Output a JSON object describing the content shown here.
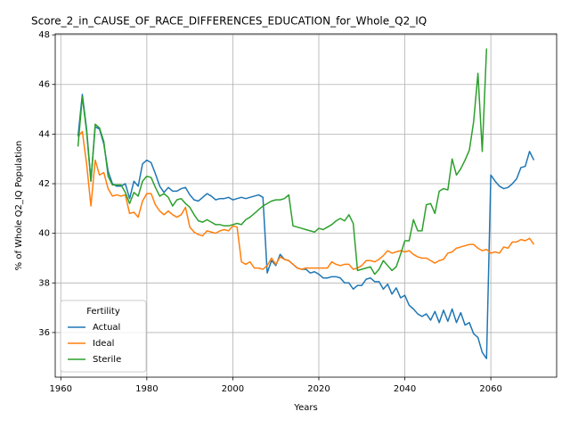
{
  "chart_data": {
    "type": "line",
    "title": "Score_2_in_CAUSE_OF_RACE_DIFFERENCES_EDUCATION_for_Whole_Q2_IQ",
    "xlabel": "Years",
    "ylabel": "% of Whole Q2_IQ Population",
    "legend_title": "Fertility",
    "legend": "lower left",
    "grid": true,
    "xlim": [
      1958.7,
      2075.3
    ],
    "ylim": [
      34.2,
      48.04
    ],
    "xticks": [
      1960,
      1980,
      2000,
      2020,
      2040,
      2060
    ],
    "yticks": [
      36,
      38,
      40,
      42,
      44,
      46,
      48
    ],
    "x": [
      1964,
      1965,
      1966,
      1967,
      1968,
      1969,
      1970,
      1971,
      1972,
      1973,
      1974,
      1975,
      1976,
      1977,
      1978,
      1979,
      1980,
      1981,
      1982,
      1983,
      1984,
      1985,
      1986,
      1987,
      1988,
      1989,
      1990,
      1991,
      1992,
      1993,
      1994,
      1995,
      1996,
      1997,
      1998,
      1999,
      2000,
      2001,
      2002,
      2003,
      2004,
      2005,
      2006,
      2007,
      2008,
      2009,
      2010,
      2011,
      2012,
      2013,
      2014,
      2015,
      2016,
      2017,
      2018,
      2019,
      2020,
      2021,
      2022,
      2023,
      2024,
      2025,
      2026,
      2027,
      2028,
      2029,
      2030,
      2031,
      2032,
      2033,
      2034,
      2035,
      2036,
      2037,
      2038,
      2039,
      2040,
      2041,
      2042,
      2043,
      2044,
      2045,
      2046,
      2047,
      2048,
      2049,
      2050,
      2051,
      2052,
      2053,
      2054,
      2055,
      2056,
      2057,
      2058,
      2059,
      2060,
      2061,
      2062,
      2063,
      2064,
      2065,
      2066,
      2067,
      2068,
      2069,
      2070
    ],
    "series": [
      {
        "name": "Actual",
        "color": "#1f77b4",
        "values": [
          43.9,
          45.6,
          44.2,
          42.1,
          44.3,
          44.2,
          43.6,
          42.5,
          42.0,
          41.9,
          41.9,
          42.0,
          41.4,
          42.1,
          41.9,
          42.8,
          42.95,
          42.85,
          42.4,
          41.9,
          41.65,
          41.85,
          41.7,
          41.7,
          41.8,
          41.85,
          41.55,
          41.35,
          41.3,
          41.45,
          41.6,
          41.5,
          41.35,
          41.4,
          41.4,
          41.45,
          41.35,
          41.4,
          41.45,
          41.4,
          41.45,
          41.5,
          41.55,
          41.45,
          38.4,
          38.9,
          38.7,
          39.15,
          38.95,
          38.9,
          38.75,
          38.6,
          38.55,
          38.55,
          38.4,
          38.45,
          38.35,
          38.2,
          38.2,
          38.25,
          38.25,
          38.2,
          38.0,
          38.0,
          37.75,
          37.9,
          37.9,
          38.15,
          38.2,
          38.05,
          38.05,
          37.75,
          37.95,
          37.55,
          37.8,
          37.4,
          37.5,
          37.1,
          36.95,
          36.75,
          36.65,
          36.75,
          36.5,
          36.85,
          36.4,
          36.9,
          36.45,
          36.95,
          36.4,
          36.8,
          36.3,
          36.4,
          35.95,
          35.8,
          35.2,
          34.95,
          42.35,
          42.1,
          41.9,
          41.8,
          41.85,
          42.0,
          42.2,
          42.65,
          42.7,
          43.3,
          42.95
        ]
      },
      {
        "name": "Ideal",
        "color": "#ff7f0e",
        "values": [
          43.9,
          44.1,
          42.8,
          41.1,
          42.95,
          42.35,
          42.45,
          41.8,
          41.5,
          41.55,
          41.5,
          41.55,
          40.8,
          40.85,
          40.65,
          41.3,
          41.6,
          41.6,
          41.15,
          40.9,
          40.75,
          40.9,
          40.75,
          40.65,
          40.75,
          41.05,
          40.25,
          40.05,
          39.95,
          39.9,
          40.1,
          40.05,
          40.0,
          40.1,
          40.15,
          40.1,
          40.3,
          40.25,
          38.85,
          38.75,
          38.85,
          38.6,
          38.6,
          38.55,
          38.7,
          39.0,
          38.75,
          39.05,
          38.95,
          38.9,
          38.75,
          38.6,
          38.55,
          38.6,
          38.6,
          38.6,
          38.6,
          38.6,
          38.6,
          38.85,
          38.75,
          38.7,
          38.75,
          38.75,
          38.55,
          38.6,
          38.7,
          38.9,
          38.9,
          38.85,
          38.95,
          39.1,
          39.3,
          39.2,
          39.25,
          39.3,
          39.25,
          39.3,
          39.15,
          39.05,
          39.0,
          39.0,
          38.9,
          38.8,
          38.9,
          38.95,
          39.2,
          39.25,
          39.4,
          39.45,
          39.5,
          39.55,
          39.55,
          39.4,
          39.3,
          39.35,
          39.2,
          39.25,
          39.2,
          39.45,
          39.4,
          39.65,
          39.65,
          39.75,
          39.7,
          39.8,
          39.55
        ]
      },
      {
        "name": "Sterile",
        "color": "#2ca02c",
        "values": [
          43.5,
          45.5,
          44.1,
          42.1,
          44.4,
          44.25,
          43.7,
          42.3,
          41.95,
          41.95,
          41.95,
          41.65,
          41.2,
          41.65,
          41.5,
          42.1,
          42.3,
          42.25,
          41.85,
          41.5,
          41.6,
          41.45,
          41.1,
          41.35,
          41.4,
          41.2,
          41.05,
          40.75,
          40.5,
          40.45,
          40.55,
          40.45,
          40.35,
          40.35,
          40.3,
          40.3,
          40.35,
          40.4,
          40.35,
          40.55,
          40.65,
          40.8,
          40.95,
          41.1,
          41.2,
          41.3,
          41.35,
          41.35,
          41.4,
          41.55,
          40.3,
          40.25,
          40.2,
          40.15,
          40.1,
          40.05,
          40.2,
          40.15,
          40.25,
          40.35,
          40.5,
          40.6,
          40.5,
          40.75,
          40.4,
          38.5,
          38.55,
          38.6,
          38.65,
          38.35,
          38.55,
          38.9,
          38.7,
          38.5,
          38.65,
          39.15,
          39.7,
          39.7,
          40.55,
          40.1,
          40.1,
          41.15,
          41.2,
          40.8,
          41.7,
          41.8,
          41.75,
          43.0,
          42.35,
          42.6,
          42.95,
          43.35,
          44.5,
          46.45,
          43.3,
          47.45,
          null,
          null,
          null,
          null,
          null,
          null,
          null,
          null,
          null,
          null,
          null
        ]
      }
    ]
  }
}
